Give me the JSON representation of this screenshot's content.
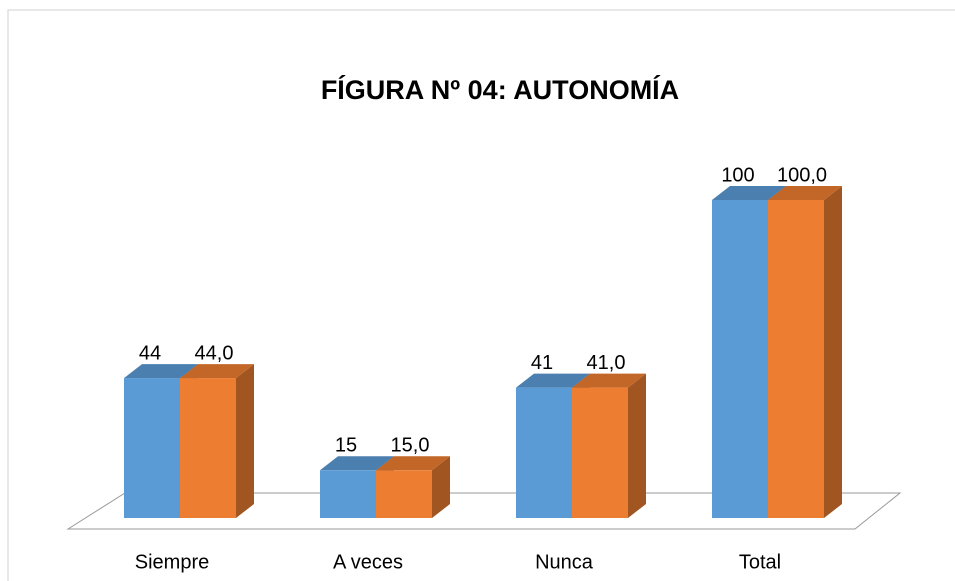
{
  "chart_data": {
    "type": "bar3d",
    "title": "FÍGURA Nº 04: AUTONOMÍA",
    "categories": [
      "Siempre",
      "A veces",
      "Nunca",
      "Total"
    ],
    "series": [
      {
        "color": "#5b9bd5",
        "values": [
          44,
          15,
          41,
          100
        ]
      },
      {
        "color": "#ed7d31",
        "values": [
          44,
          15,
          41,
          100
        ],
        "value_labels": [
          "44,0",
          "15,0",
          "41,0",
          "100,0"
        ]
      }
    ],
    "ylim": [
      0,
      100
    ]
  }
}
